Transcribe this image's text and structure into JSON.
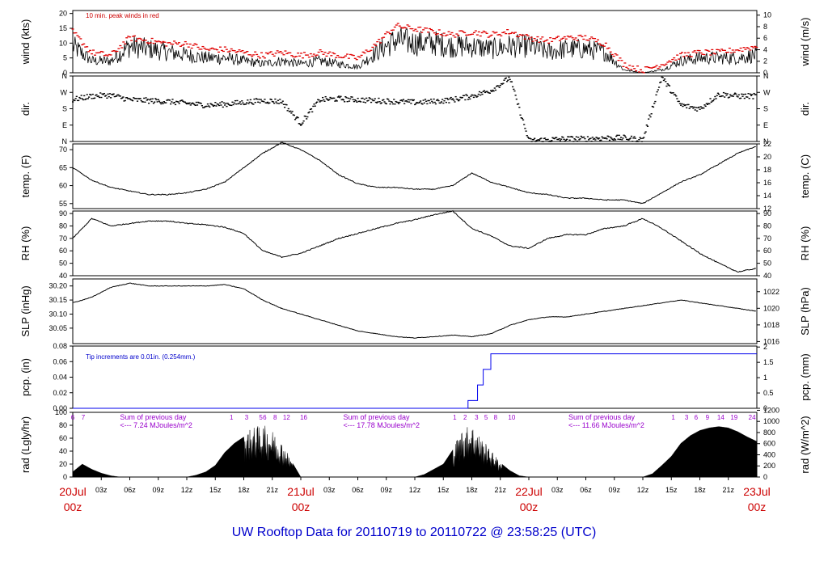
{
  "chart_data": {
    "title": "UW Rooftop Data for 20110719  to  20110722 @ 23:58:25  (UTC)",
    "x_range": [
      "2011-07-20 00z",
      "2011-07-23 00z"
    ],
    "time_axis": {
      "hour_labels": [
        "03z",
        "06z",
        "09z",
        "12z",
        "15z",
        "18z",
        "21z",
        "00z",
        "03z",
        "06z",
        "09z",
        "12z",
        "15z",
        "18z",
        "21z",
        "00z",
        "03z",
        "06z",
        "09z",
        "12z",
        "15z",
        "18z",
        "21z"
      ],
      "date_labels": [
        {
          "date": "20Jul",
          "hour": "00z"
        },
        {
          "date": "21Jul",
          "hour": "00z"
        },
        {
          "date": "22Jul",
          "hour": "00z"
        },
        {
          "date": "23Jul",
          "hour": "00z"
        }
      ]
    },
    "panels": [
      {
        "id": "wind",
        "type": "line",
        "ylabel": "wind (kts)",
        "ylabel_right": "wind (m/s)",
        "ylim": [
          0,
          21
        ],
        "yticks": [
          "0",
          "5",
          "10",
          "15",
          "20"
        ],
        "yticks_right": [
          "0",
          "2",
          "4",
          "6",
          "8",
          "10"
        ],
        "annotation": "10 min. peak winds in red",
        "x_hours": [
          0,
          2,
          4,
          6,
          8,
          10,
          12,
          14,
          16,
          18,
          20,
          22,
          24,
          26,
          28,
          30,
          32,
          34,
          36,
          38,
          40,
          42,
          44,
          46,
          48,
          50,
          52,
          54,
          56,
          58,
          60,
          62,
          64,
          66,
          68,
          70,
          72
        ],
        "series": [
          {
            "values": [
              9,
              4,
              4,
              9,
              8,
              7,
              6,
              5,
              5,
              4,
              3,
              4,
              3,
              4,
              3,
              2,
              7,
              11,
              10,
              10,
              9,
              9,
              8,
              9,
              9,
              7,
              8,
              8,
              7,
              1,
              0,
              1,
              4,
              5,
              5,
              5,
              6
            ]
          },
          {
            "values": [
              14,
              7,
              6,
              12,
              11,
              10,
              10,
              8,
              8,
              7,
              6,
              7,
              6,
              7,
              6,
              5,
              10,
              16,
              15,
              14,
              13,
              14,
              13,
              14,
              12,
              11,
              12,
              12,
              10,
              3,
              1,
              3,
              6,
              7,
              7,
              8,
              9
            ]
          }
        ]
      },
      {
        "id": "dir",
        "type": "scatter",
        "ylabel": "dir.",
        "ylabel_right": "dir.",
        "ylim": [
          0,
          360
        ],
        "yticks": [
          "N",
          "E",
          "S",
          "W",
          "N"
        ],
        "yticks_right": [
          "N",
          "E",
          "S",
          "W",
          "N"
        ],
        "x_hours": [
          0,
          2,
          4,
          6,
          8,
          10,
          12,
          14,
          16,
          18,
          20,
          22,
          24,
          26,
          28,
          30,
          32,
          34,
          36,
          38,
          40,
          42,
          44,
          46,
          48,
          50,
          52,
          54,
          56,
          58,
          60,
          62,
          64,
          66,
          68,
          70,
          72
        ],
        "values": [
          230,
          250,
          255,
          230,
          225,
          220,
          210,
          200,
          205,
          215,
          225,
          220,
          100,
          230,
          235,
          230,
          225,
          220,
          215,
          220,
          230,
          250,
          280,
          350,
          5,
          10,
          15,
          15,
          20,
          20,
          10,
          355,
          200,
          180,
          260,
          250,
          250
        ]
      },
      {
        "id": "temp",
        "type": "line",
        "ylabel": "temp. (F)",
        "ylabel_right": "temp. (C)",
        "ylim": [
          53.6,
          71.6
        ],
        "yticks": [
          "55",
          "60",
          "65",
          "70"
        ],
        "yticks_right": [
          "12",
          "14",
          "16",
          "18",
          "20",
          "22"
        ],
        "x_hours": [
          0,
          2,
          4,
          6,
          8,
          10,
          12,
          14,
          16,
          18,
          20,
          22,
          24,
          26,
          28,
          30,
          32,
          34,
          36,
          38,
          40,
          42,
          44,
          46,
          48,
          50,
          52,
          54,
          56,
          58,
          60,
          62,
          64,
          66,
          68,
          70,
          72
        ],
        "values": [
          65,
          61.5,
          59.5,
          58.5,
          57.5,
          57.5,
          58,
          59,
          61,
          65,
          69,
          72,
          70,
          67,
          63,
          60.5,
          59.5,
          59.5,
          59,
          59,
          60,
          63.5,
          61,
          59.5,
          58,
          57.5,
          56.5,
          56.5,
          56,
          56,
          55,
          58,
          61,
          63,
          66,
          69,
          71
        ]
      },
      {
        "id": "rh",
        "type": "line",
        "ylabel": "RH (%)",
        "ylabel_right": "RH (%)",
        "ylim": [
          40,
          92
        ],
        "yticks": [
          "40",
          "50",
          "60",
          "70",
          "80",
          "90"
        ],
        "yticks_right": [
          "40",
          "50",
          "60",
          "70",
          "80",
          "90"
        ],
        "x_hours": [
          0,
          2,
          4,
          6,
          8,
          10,
          12,
          14,
          16,
          18,
          20,
          22,
          24,
          26,
          28,
          30,
          32,
          34,
          36,
          38,
          40,
          42,
          44,
          46,
          48,
          50,
          52,
          54,
          56,
          58,
          60,
          62,
          64,
          66,
          68,
          70,
          72
        ],
        "values": [
          70,
          86,
          80,
          82,
          84,
          84,
          82,
          81,
          79,
          74,
          60,
          55,
          58,
          64,
          70,
          74,
          78,
          82,
          85,
          89,
          92,
          78,
          72,
          64,
          62,
          70,
          73,
          73,
          78,
          80,
          86,
          78,
          68,
          58,
          50,
          43,
          46
        ]
      },
      {
        "id": "slp",
        "type": "line",
        "ylabel": "SLP (inHg)",
        "ylabel_right": "SLP (hPa)",
        "ylim": [
          29.995,
          30.225
        ],
        "yticks": [
          "30.05",
          "30.10",
          "30.15",
          "30.20"
        ],
        "yticks_right": [
          "1016",
          "1018",
          "1020",
          "1022"
        ],
        "x_hours": [
          0,
          2,
          4,
          6,
          8,
          10,
          12,
          14,
          16,
          18,
          20,
          22,
          24,
          26,
          28,
          30,
          32,
          34,
          36,
          38,
          40,
          42,
          44,
          46,
          48,
          50,
          52,
          54,
          56,
          58,
          60,
          62,
          64,
          66,
          68,
          70,
          72
        ],
        "values": [
          30.14,
          30.16,
          30.195,
          30.21,
          30.2,
          30.2,
          30.2,
          30.2,
          30.205,
          30.19,
          30.15,
          30.12,
          30.1,
          30.08,
          30.06,
          30.04,
          30.03,
          30.02,
          30.015,
          30.02,
          30.025,
          30.02,
          30.03,
          30.06,
          30.08,
          30.09,
          30.09,
          30.1,
          30.11,
          30.12,
          30.13,
          30.14,
          30.15,
          30.14,
          30.13,
          30.12,
          30.11
        ]
      },
      {
        "id": "pcp",
        "type": "line",
        "ylabel": "pcp. (in)",
        "ylabel_right": "pcp. (mm)",
        "ylim": [
          0,
          0.08
        ],
        "yticks": [
          "0.00",
          "0.02",
          "0.04",
          "0.06",
          "0.08"
        ],
        "yticks_right": [
          "0",
          "0.5",
          "1",
          "1.5",
          "2"
        ],
        "annotation": "Tip increments are 0.01in. (0.254mm.)",
        "x_hours": [
          0,
          40,
          41.6,
          42.6,
          43.2,
          44,
          72
        ],
        "values": [
          0,
          0,
          0.01,
          0.03,
          0.05,
          0.07,
          0.07
        ]
      },
      {
        "id": "rad",
        "type": "area",
        "ylabel": "rad (Lgly/hr)",
        "ylabel_right": "rad (W/m^2)",
        "ylim": [
          0,
          100
        ],
        "yticks": [
          "0",
          "20",
          "40",
          "60",
          "80",
          "100"
        ],
        "yticks_right": [
          "0",
          "200",
          "400",
          "600",
          "800",
          "1000",
          "1200"
        ],
        "x_hours": [
          0,
          1,
          2,
          3,
          4,
          5,
          6,
          12,
          13,
          14,
          15,
          16,
          17,
          18,
          19,
          20,
          21,
          22,
          23,
          24,
          30,
          36,
          37,
          38,
          39,
          40,
          41,
          42,
          43,
          44,
          45,
          46,
          47,
          48,
          54,
          60,
          61,
          62,
          63,
          64,
          65,
          66,
          67,
          68,
          69,
          70,
          71,
          72
        ],
        "values": [
          8,
          20,
          12,
          6,
          2,
          0,
          0,
          0,
          3,
          8,
          18,
          38,
          52,
          62,
          70,
          74,
          66,
          50,
          25,
          0,
          0,
          0,
          4,
          12,
          20,
          42,
          68,
          75,
          55,
          38,
          22,
          10,
          2,
          0,
          0,
          0,
          5,
          18,
          32,
          52,
          64,
          72,
          76,
          78,
          76,
          70,
          62,
          55
        ],
        "hour_markers": [
          {
            "label": "6",
            "at": 0
          },
          {
            "label": "7",
            "at": 1.1
          },
          {
            "label": "1",
            "at": 16.7
          },
          {
            "label": "3",
            "at": 18.3
          },
          {
            "label": "5",
            "at": 19.8
          },
          {
            "label": "6",
            "at": 20.2
          },
          {
            "label": "8",
            "at": 21.3
          },
          {
            "label": "12",
            "at": 22.5
          },
          {
            "label": "16",
            "at": 24.3
          },
          {
            "label": "1",
            "at": 40.2
          },
          {
            "label": "2",
            "at": 41.3
          },
          {
            "label": "3",
            "at": 42.5
          },
          {
            "label": "5",
            "at": 43.5
          },
          {
            "label": "8",
            "at": 44.5
          },
          {
            "label": "10",
            "at": 46.2
          },
          {
            "label": "1",
            "at": 63.2
          },
          {
            "label": "3",
            "at": 64.6
          },
          {
            "label": "6",
            "at": 65.6
          },
          {
            "label": "9",
            "at": 66.8
          },
          {
            "label": "14",
            "at": 68.2
          },
          {
            "label": "19",
            "at": 69.6
          },
          {
            "label": "24",
            "at": 71.5
          }
        ],
        "day_sums": [
          {
            "line1": "Sum of previous day",
            "line2": "<--- 7.24 MJoules/m^2",
            "at": 4.8
          },
          {
            "line1": "Sum of previous day",
            "line2": "<--- 17.78 MJoules/m^2",
            "at": 28.3
          },
          {
            "line1": "Sum of previous day",
            "line2": "<--- 11.66 MJoules/m^2",
            "at": 52.0
          }
        ]
      }
    ]
  },
  "footer": {
    "title": "UW Rooftop Data for 20110719  to  20110722 @ 23:58:25  (UTC)"
  }
}
